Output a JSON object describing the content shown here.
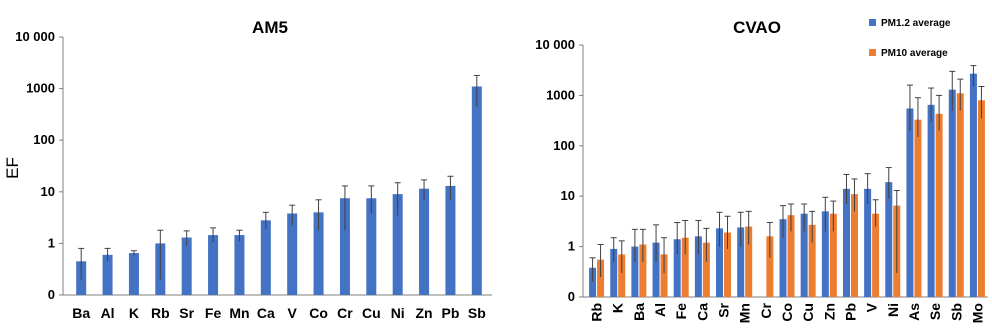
{
  "chart_data": [
    {
      "type": "bar",
      "title": "AM5",
      "ylabel": "EF",
      "yscale": "log",
      "ylim": [
        0.1,
        10000
      ],
      "yticks": [
        {
          "value": 0.1,
          "label": "0"
        },
        {
          "value": 1,
          "label": "1"
        },
        {
          "value": 10,
          "label": "10"
        },
        {
          "value": 100,
          "label": "100"
        },
        {
          "value": 1000,
          "label": "1000"
        },
        {
          "value": 10000,
          "label": "10 000"
        }
      ],
      "categories": [
        "Ba",
        "Al",
        "K",
        "Rb",
        "Sr",
        "Fe",
        "Mn",
        "Ca",
        "V",
        "Co",
        "Cr",
        "Cu",
        "Ni",
        "Zn",
        "Pb",
        "Sb"
      ],
      "series": [
        {
          "color": "#4472C4",
          "values": [
            0.45,
            0.6,
            0.65,
            1.0,
            1.3,
            1.45,
            1.45,
            2.8,
            3.8,
            4.0,
            7.5,
            7.5,
            9.0,
            11.5,
            13.0,
            1100
          ],
          "err_low": [
            0.2,
            0.45,
            0.58,
            0.2,
            0.9,
            1.05,
            1.1,
            1.9,
            2.2,
            1.8,
            1.8,
            3.8,
            3.5,
            7.0,
            7.0,
            450
          ],
          "err_high": [
            0.8,
            0.8,
            0.72,
            1.8,
            1.75,
            2.0,
            1.8,
            4.0,
            5.5,
            7.0,
            13.0,
            13.0,
            15.0,
            17.0,
            20.0,
            1800
          ]
        }
      ]
    },
    {
      "type": "bar",
      "title": "CVAO",
      "yscale": "log",
      "ylim": [
        0.1,
        10000
      ],
      "yticks": [
        {
          "value": 0.1,
          "label": "0"
        },
        {
          "value": 1,
          "label": "1"
        },
        {
          "value": 10,
          "label": "10"
        },
        {
          "value": 100,
          "label": "100"
        },
        {
          "value": 1000,
          "label": "1000"
        },
        {
          "value": 10000,
          "label": "10 000"
        }
      ],
      "categories": [
        "Rb",
        "K",
        "Ba",
        "Al",
        "Fe",
        "Ca",
        "Sr",
        "Mn",
        "Cr",
        "Co",
        "Cu",
        "Zn",
        "Pb",
        "V",
        "Ni",
        "As",
        "Se",
        "Sb",
        "Mo"
      ],
      "legend": {
        "position": "top-right"
      },
      "series": [
        {
          "name": "PM1.2 average",
          "color": "#4472C4",
          "values": [
            0.38,
            0.9,
            1.0,
            1.2,
            1.4,
            1.6,
            2.3,
            2.4,
            null,
            3.5,
            4.5,
            5.0,
            14,
            14,
            19,
            550,
            650,
            1300,
            2700
          ],
          "err_low": [
            0.2,
            0.5,
            0.5,
            0.5,
            0.7,
            0.7,
            1.0,
            1.0,
            null,
            1.5,
            2.0,
            2.0,
            7,
            7,
            9,
            200,
            300,
            500,
            1500
          ],
          "err_high": [
            0.6,
            1.5,
            2.2,
            2.7,
            3.0,
            3.3,
            4.8,
            4.8,
            null,
            6.5,
            7.0,
            9.5,
            27,
            28,
            37,
            1600,
            1400,
            3000,
            3900
          ]
        },
        {
          "name": "PM10 average",
          "color": "#ED7D31",
          "values": [
            0.55,
            0.7,
            1.1,
            0.7,
            1.5,
            1.2,
            1.9,
            2.5,
            1.6,
            4.2,
            2.7,
            4.5,
            11,
            4.5,
            6.5,
            330,
            430,
            1100,
            800
          ],
          "err_low": [
            0.25,
            0.3,
            0.5,
            0.3,
            0.7,
            0.5,
            0.9,
            1.1,
            0.6,
            2.0,
            1.2,
            2.0,
            5,
            2.5,
            0.3,
            150,
            200,
            500,
            350
          ],
          "err_high": [
            1.1,
            1.3,
            2.2,
            1.5,
            3.3,
            2.3,
            4.0,
            5.0,
            3.0,
            7.0,
            5.0,
            8.0,
            22,
            8.5,
            13,
            900,
            1000,
            2100,
            1500
          ]
        }
      ]
    }
  ]
}
